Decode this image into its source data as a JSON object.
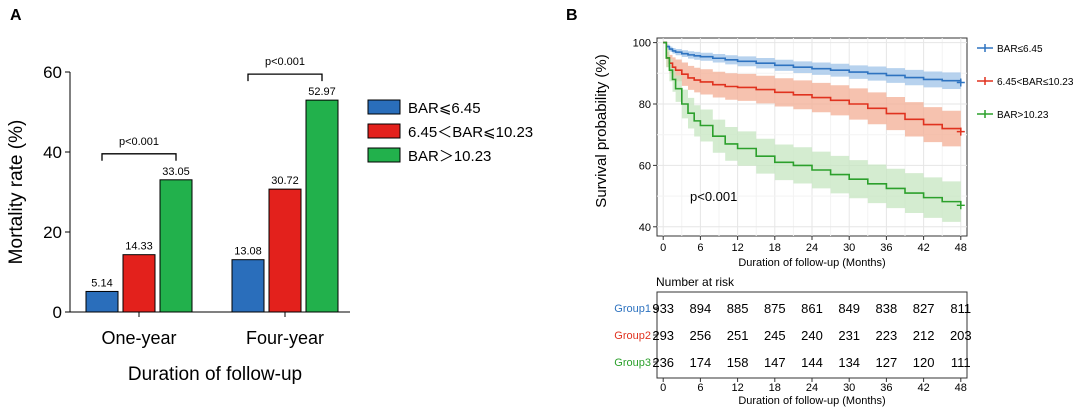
{
  "panel_labels": {
    "a": "A",
    "b": "B"
  },
  "chart_data": [
    {
      "panel": "A",
      "type": "bar",
      "title": "",
      "xlabel": "Duration of follow-up",
      "ylabel": "Mortality rate (%)",
      "ylim": [
        0,
        60
      ],
      "yticks": [
        0,
        20,
        40,
        60
      ],
      "categories": [
        "One-year",
        "Four-year"
      ],
      "series": [
        {
          "name": "BAR⩽6.45",
          "color": "#2a6ebb",
          "values": [
            5.14,
            13.08
          ],
          "labels": [
            "5.14",
            "13.08"
          ]
        },
        {
          "name": "6.45＜BAR⩽10.23",
          "color": "#e3211c",
          "values": [
            14.33,
            30.72
          ],
          "labels": [
            "14.33",
            "30.72"
          ]
        },
        {
          "name": "BAR＞10.23",
          "color": "#22b14c",
          "values": [
            33.05,
            52.97
          ],
          "labels": [
            "33.05",
            "52.97"
          ]
        }
      ],
      "annotations": [
        {
          "category": "One-year",
          "text": "p<0.001"
        },
        {
          "category": "Four-year",
          "text": "p<0.001"
        }
      ],
      "legend_position": "right"
    },
    {
      "panel": "B",
      "type": "line",
      "title": "",
      "xlabel": "Duration of follow-up (Months)",
      "ylabel": "Survival probability (%)",
      "xlim": [
        -1,
        49
      ],
      "ylim": [
        37,
        101.5
      ],
      "xticks": [
        0,
        6,
        12,
        18,
        24,
        30,
        36,
        42,
        48
      ],
      "yticks": [
        40,
        60,
        80,
        100
      ],
      "grid": true,
      "annotation": "p<0.001",
      "legend_position": "right",
      "series": [
        {
          "name": "BAR≤6.45",
          "color": "#2e73c0",
          "fill": "#9fc3e8",
          "x": [
            0,
            0.5,
            1,
            1.5,
            2,
            3,
            4,
            5,
            6,
            8,
            10,
            12,
            15,
            18,
            21,
            24,
            27,
            30,
            33,
            36,
            39,
            42,
            45,
            48
          ],
          "y": [
            100,
            98.7,
            97.9,
            97.3,
            96.9,
            96.4,
            96.0,
            95.7,
            95.4,
            94.9,
            94.4,
            93.9,
            93.3,
            92.6,
            92.0,
            91.5,
            91.0,
            90.4,
            89.9,
            89.3,
            88.6,
            88.0,
            87.6,
            87.0
          ],
          "lower": [
            100,
            98.0,
            97.1,
            96.4,
            95.9,
            95.3,
            94.8,
            94.4,
            94.1,
            93.5,
            92.9,
            92.3,
            91.6,
            90.8,
            90.1,
            89.5,
            88.9,
            88.2,
            87.6,
            86.9,
            86.1,
            85.4,
            84.9,
            84.1
          ],
          "upper": [
            100,
            99.4,
            98.7,
            98.2,
            97.9,
            97.5,
            97.2,
            97.0,
            96.7,
            96.3,
            95.9,
            95.5,
            95.0,
            94.4,
            93.9,
            93.5,
            93.1,
            92.6,
            92.2,
            91.7,
            91.1,
            90.6,
            90.3,
            89.9
          ]
        },
        {
          "name": "6.45<BAR≤10.23",
          "color": "#e0321f",
          "fill": "#f3ad94",
          "x": [
            0,
            0.5,
            1,
            1.5,
            2,
            3,
            4,
            5,
            6,
            8,
            10,
            12,
            15,
            18,
            21,
            24,
            27,
            30,
            33,
            36,
            39,
            42,
            45,
            48
          ],
          "y": [
            100,
            95.0,
            93.3,
            92.0,
            91.0,
            89.7,
            88.5,
            87.8,
            87.2,
            86.3,
            85.7,
            85.4,
            84.7,
            83.8,
            83.0,
            82.1,
            81.2,
            80.0,
            78.6,
            76.9,
            75.0,
            73.3,
            72.0,
            71.0
          ],
          "lower": [
            100,
            92.0,
            90.0,
            88.5,
            87.4,
            85.9,
            84.6,
            83.8,
            83.1,
            82.1,
            81.4,
            81.0,
            80.2,
            79.2,
            78.3,
            77.3,
            76.3,
            74.9,
            73.4,
            71.5,
            69.4,
            67.6,
            66.2,
            65.0
          ],
          "upper": [
            100,
            97.0,
            96.0,
            95.2,
            94.5,
            93.5,
            92.4,
            91.8,
            91.3,
            90.5,
            90.0,
            89.8,
            89.2,
            88.4,
            87.7,
            86.9,
            86.1,
            85.1,
            83.8,
            82.3,
            80.6,
            79.0,
            77.8,
            77.0
          ]
        },
        {
          "name": "BAR>10.23",
          "color": "#2ca02c",
          "fill": "#c5e6c0",
          "x": [
            0,
            0.5,
            1,
            1.5,
            2,
            3,
            4,
            5,
            6,
            8,
            10,
            12,
            15,
            18,
            21,
            24,
            27,
            30,
            33,
            36,
            39,
            42,
            45,
            48
          ],
          "y": [
            100,
            95.0,
            91.0,
            88.0,
            85.0,
            80.0,
            77.0,
            74.5,
            73.0,
            69.5,
            67.0,
            65.5,
            63.0,
            61.0,
            60.0,
            58.5,
            57.0,
            55.5,
            54.0,
            52.5,
            51.0,
            49.5,
            48.2,
            47.0
          ],
          "lower": [
            100,
            92.0,
            87.4,
            84.0,
            80.7,
            75.3,
            72.0,
            69.4,
            67.8,
            64.1,
            61.5,
            59.9,
            57.3,
            55.2,
            54.1,
            52.5,
            50.9,
            49.3,
            47.7,
            46.1,
            44.5,
            42.9,
            41.6,
            40.3
          ],
          "upper": [
            100,
            98.0,
            94.6,
            92.0,
            89.3,
            84.7,
            82.0,
            79.6,
            78.2,
            74.9,
            72.5,
            71.1,
            68.7,
            66.8,
            65.9,
            64.5,
            63.1,
            61.7,
            60.3,
            58.9,
            57.5,
            56.1,
            54.8,
            53.7
          ]
        }
      ]
    },
    {
      "panel": "B-risk",
      "type": "table",
      "title": "Number at risk",
      "xlabel": "Duration of follow-up (Months)",
      "xticks": [
        0,
        6,
        12,
        18,
        24,
        30,
        36,
        42,
        48
      ],
      "rows": [
        {
          "name": "Group1",
          "color": "#2e73c0",
          "values": [
            933,
            894,
            885,
            875,
            861,
            849,
            838,
            827,
            811
          ]
        },
        {
          "name": "Group2",
          "color": "#e0321f",
          "values": [
            293,
            256,
            251,
            245,
            240,
            231,
            223,
            212,
            203
          ]
        },
        {
          "name": "Group3",
          "color": "#2ca02c",
          "values": [
            236,
            174,
            158,
            147,
            144,
            134,
            127,
            120,
            111
          ]
        }
      ]
    }
  ]
}
